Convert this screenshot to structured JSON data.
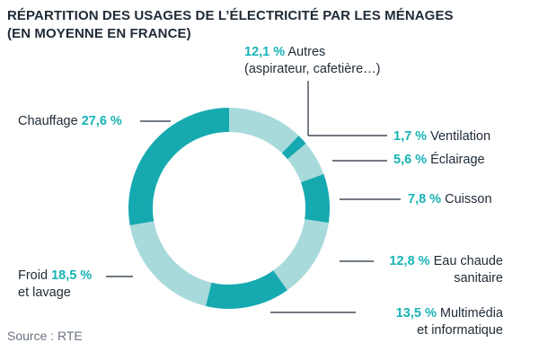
{
  "title_line1": "RÉPARTITION DES USAGES DE L’ÉLECTRICITÉ PAR LES MÉNAGES",
  "title_line2": "(EN MOYENNE EN FRANCE)",
  "source": "Source : RTE",
  "colors": {
    "dark": "#16aab0",
    "light": "#a8dadb",
    "percent": "#17b3b6",
    "text": "#1f2a36",
    "leader": "#1f2a36"
  },
  "chart_data": {
    "type": "pie",
    "donut": true,
    "slices": [
      {
        "key": "autres",
        "label_line1": "Autres",
        "label_line2": "(aspirateur, cafetière…)",
        "value": 12.1,
        "display": "12,1 %",
        "shade": "light"
      },
      {
        "key": "ventilation",
        "label_line1": "Ventilation",
        "label_line2": "",
        "value": 1.7,
        "display": "1,7 %",
        "shade": "dark"
      },
      {
        "key": "eclairage",
        "label_line1": "Éclairage",
        "label_line2": "",
        "value": 5.6,
        "display": "5,6 %",
        "shade": "light"
      },
      {
        "key": "cuisson",
        "label_line1": "Cuisson",
        "label_line2": "",
        "value": 7.8,
        "display": "7,8 %",
        "shade": "dark"
      },
      {
        "key": "eau",
        "label_line1": "Eau chaude",
        "label_line2": "sanitaire",
        "value": 12.8,
        "display": "12,8 %",
        "shade": "light"
      },
      {
        "key": "multimedia",
        "label_line1": "Multimédia",
        "label_line2": "et informatique",
        "value": 13.5,
        "display": "13,5 %",
        "shade": "dark"
      },
      {
        "key": "froid",
        "label_line1": "Froid",
        "label_line2": "et lavage",
        "value": 18.5,
        "display": "18,5 %",
        "shade": "light"
      },
      {
        "key": "chauffage",
        "label_line1": "Chauffage",
        "label_line2": "",
        "value": 27.6,
        "display": "27,6 %",
        "shade": "dark"
      }
    ]
  }
}
